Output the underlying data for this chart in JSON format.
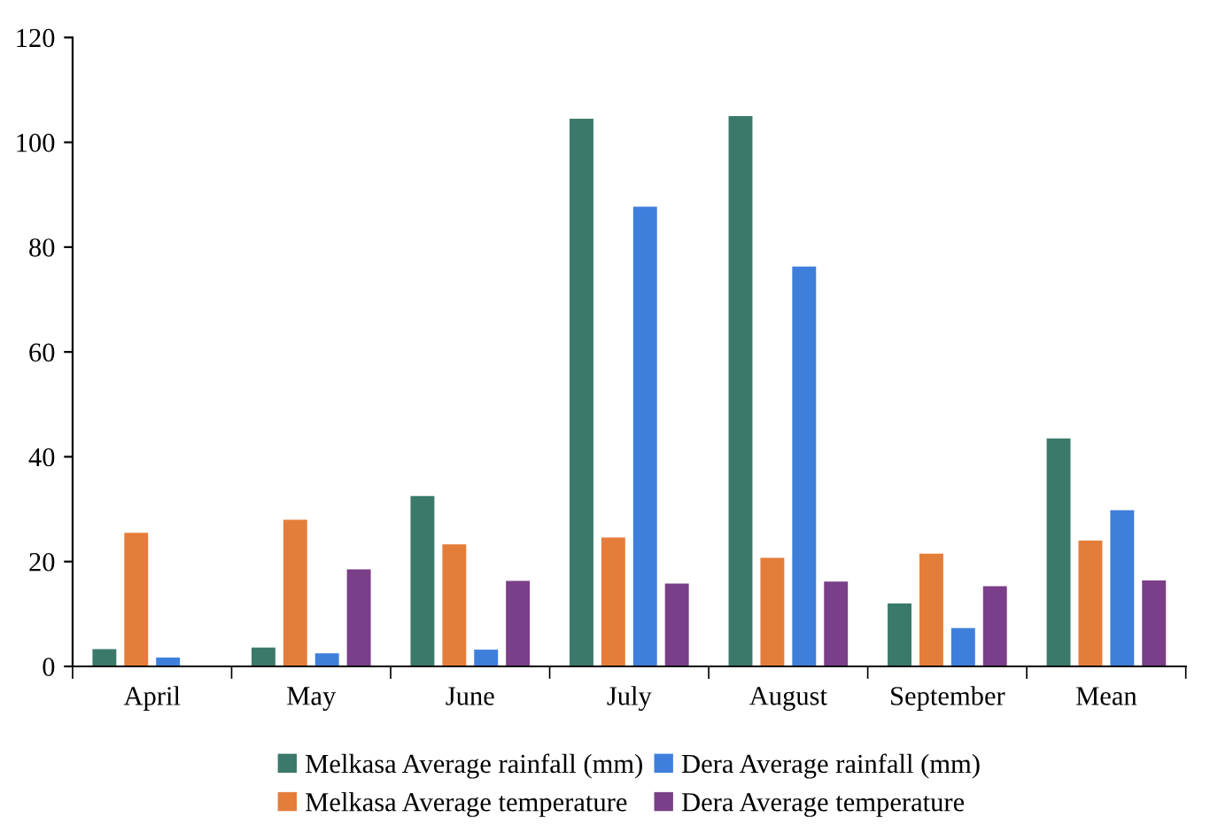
{
  "chart_data": {
    "type": "bar",
    "categories": [
      "April",
      "May",
      "June",
      "July",
      "August",
      "September",
      "Mean"
    ],
    "series": [
      {
        "name": "Melkasa Average rainfall (mm)",
        "color": "#3b7a6b",
        "values": [
          3.3,
          3.6,
          32.5,
          104.5,
          105,
          12,
          43.5
        ]
      },
      {
        "name": "Melkasa Average temperature",
        "color": "#e57d3a",
        "values": [
          25.5,
          28,
          23.3,
          24.6,
          20.7,
          21.5,
          24
        ]
      },
      {
        "name": "Dera Average rainfall (mm)",
        "color": "#3f7fdc",
        "values": [
          1.7,
          2.5,
          3.2,
          87.7,
          76.3,
          7.3,
          29.8
        ]
      },
      {
        "name": "Dera Average temperature",
        "color": "#7a3f88",
        "values": [
          null,
          18.5,
          16.3,
          15.8,
          16.2,
          15.3,
          16.4
        ]
      }
    ],
    "ylim": [
      0,
      120
    ],
    "yticks": [
      0,
      20,
      40,
      60,
      80,
      100,
      120
    ],
    "grid": false,
    "legend": "bottom"
  }
}
